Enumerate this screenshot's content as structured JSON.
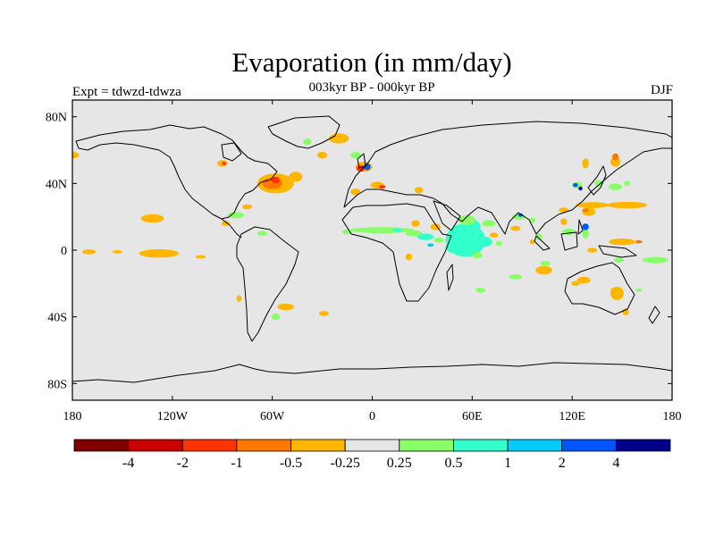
{
  "title": "Evaporation (in mm/day)",
  "subtitle": "003kyr BP - 000kyr BP",
  "expt_label": "Expt = tdwzd-tdwza",
  "season": "DJF",
  "map": {
    "projection": "cylindrical-equidistant",
    "lon_range": [
      -180,
      180
    ],
    "lat_range": [
      -90,
      90
    ],
    "background_color": "#e6e6e6",
    "coastline_color": "#000000",
    "lat_ticks": [
      {
        "lat": 80,
        "label": "80N"
      },
      {
        "lat": 40,
        "label": "40N"
      },
      {
        "lat": 0,
        "label": "0"
      },
      {
        "lat": -40,
        "label": "40S"
      },
      {
        "lat": -80,
        "label": "80S"
      }
    ],
    "lon_ticks": [
      {
        "lon": -180,
        "label": "180"
      },
      {
        "lon": -120,
        "label": "120W"
      },
      {
        "lon": -60,
        "label": "60W"
      },
      {
        "lon": 0,
        "label": "0"
      },
      {
        "lon": 60,
        "label": "60E"
      },
      {
        "lon": 120,
        "label": "120E"
      },
      {
        "lon": 180,
        "label": "180"
      }
    ]
  },
  "colorbar": {
    "colors": [
      "#800000",
      "#cc0000",
      "#ff3300",
      "#ff7700",
      "#ffb600",
      "#e6e6e6",
      "#88ff66",
      "#33ffcc",
      "#00ccff",
      "#0055ff",
      "#000088"
    ],
    "labels": [
      "-4",
      "-2",
      "-1",
      "-0.5",
      "-0.25",
      "0.25",
      "0.5",
      "1",
      "2",
      "4"
    ]
  },
  "anomalies": [
    {
      "lon": -58,
      "lat": 40,
      "rx": 11,
      "ry": 6,
      "color": "#ffb600"
    },
    {
      "lon": -60,
      "lat": 40,
      "rx": 6,
      "ry": 3.5,
      "color": "#ff7700"
    },
    {
      "lon": -58,
      "lat": 42,
      "rx": 2.5,
      "ry": 2,
      "color": "#ff3300"
    },
    {
      "lon": -46,
      "lat": 44,
      "rx": 4,
      "ry": 3,
      "color": "#ffb600"
    },
    {
      "lon": -90,
      "lat": 52,
      "rx": 3,
      "ry": 2,
      "color": "#ffb600"
    },
    {
      "lon": -89,
      "lat": 52,
      "rx": 1.3,
      "ry": 1,
      "color": "#ff3300"
    },
    {
      "lon": -180,
      "lat": 57,
      "rx": 4,
      "ry": 2,
      "color": "#ffb600"
    },
    {
      "lon": -39,
      "lat": 65,
      "rx": 2.5,
      "ry": 2,
      "color": "#88ff66"
    },
    {
      "lon": -20,
      "lat": 67,
      "rx": 6,
      "ry": 3,
      "color": "#ffb600"
    },
    {
      "lon": -30,
      "lat": 57,
      "rx": 3,
      "ry": 2,
      "color": "#ffb600"
    },
    {
      "lon": -10,
      "lat": 57,
      "rx": 3,
      "ry": 2,
      "color": "#88ff66"
    },
    {
      "lon": -5,
      "lat": 50,
      "rx": 5,
      "ry": 3,
      "color": "#ffb600"
    },
    {
      "lon": -7,
      "lat": 49,
      "rx": 2.5,
      "ry": 2,
      "color": "#ff3300"
    },
    {
      "lon": -3,
      "lat": 50,
      "rx": 2,
      "ry": 2,
      "color": "#0055ff"
    },
    {
      "lon": 3,
      "lat": 39,
      "rx": 4,
      "ry": 2,
      "color": "#ffb600"
    },
    {
      "lon": 6,
      "lat": 38,
      "rx": 2,
      "ry": 1,
      "color": "#ff3300"
    },
    {
      "lon": -10,
      "lat": 35,
      "rx": 3,
      "ry": 2,
      "color": "#ffb600"
    },
    {
      "lon": 28,
      "lat": 36,
      "rx": 2.5,
      "ry": 2,
      "color": "#ffb600"
    },
    {
      "lon": -132,
      "lat": 19,
      "rx": 7,
      "ry": 2.5,
      "color": "#ffb600"
    },
    {
      "lon": -82,
      "lat": 21,
      "rx": 5,
      "ry": 2,
      "color": "#88ff66"
    },
    {
      "lon": -75,
      "lat": 26,
      "rx": 3,
      "ry": 1.5,
      "color": "#ffb600"
    },
    {
      "lon": -88,
      "lat": 16,
      "rx": 2.5,
      "ry": 1.5,
      "color": "#ffb600"
    },
    {
      "lon": -66,
      "lat": 10,
      "rx": 3,
      "ry": 1.5,
      "color": "#88ff66"
    },
    {
      "lon": -170,
      "lat": -1,
      "rx": 4,
      "ry": 1.5,
      "color": "#ffb600"
    },
    {
      "lon": -153,
      "lat": -1,
      "rx": 3,
      "ry": 1,
      "color": "#ffb600"
    },
    {
      "lon": -128,
      "lat": -2,
      "rx": 12,
      "ry": 2.5,
      "color": "#ffb600"
    },
    {
      "lon": -103,
      "lat": -4,
      "rx": 3,
      "ry": 1,
      "color": "#ffb600"
    },
    {
      "lon": -15,
      "lat": 11,
      "rx": 3,
      "ry": 1.5,
      "color": "#88ff66"
    },
    {
      "lon": 6,
      "lat": 12,
      "rx": 19,
      "ry": 1.8,
      "color": "#88ff66"
    },
    {
      "lon": 15,
      "lat": 12,
      "rx": 3,
      "ry": 1,
      "color": "#33ffcc"
    },
    {
      "lon": 25,
      "lat": 10,
      "rx": 5,
      "ry": 1.8,
      "color": "#88ff66"
    },
    {
      "lon": 32,
      "lat": 8,
      "rx": 5,
      "ry": 2,
      "color": "#33ffcc"
    },
    {
      "lon": 40,
      "lat": 6,
      "rx": 3,
      "ry": 1.5,
      "color": "#88ff66"
    },
    {
      "lon": 35,
      "lat": 3,
      "rx": 2,
      "ry": 1,
      "color": "#00ccff"
    },
    {
      "lon": 38,
      "lat": 14,
      "rx": 3,
      "ry": 2,
      "color": "#ffb600"
    },
    {
      "lon": 26,
      "lat": 16,
      "rx": 2.5,
      "ry": 2,
      "color": "#ffb600"
    },
    {
      "lon": 22,
      "lat": -4,
      "rx": 2,
      "ry": 2,
      "color": "#ffb600"
    },
    {
      "lon": -52,
      "lat": -34,
      "rx": 5,
      "ry": 2,
      "color": "#ffb600"
    },
    {
      "lon": -58,
      "lat": -40,
      "rx": 2.5,
      "ry": 2,
      "color": "#88ff66"
    },
    {
      "lon": -80,
      "lat": -29,
      "rx": 1.5,
      "ry": 2,
      "color": "#ffb600"
    },
    {
      "lon": -29,
      "lat": -38,
      "rx": 3,
      "ry": 1.5,
      "color": "#ffb600"
    },
    {
      "lon": 56,
      "lat": 6,
      "rx": 12,
      "ry": 10,
      "color": "#33ffcc"
    },
    {
      "lon": 50,
      "lat": 2,
      "rx": 6,
      "ry": 4,
      "color": "#33ffcc"
    },
    {
      "lon": 61,
      "lat": 14,
      "rx": 4,
      "ry": 4,
      "color": "#33ffcc"
    },
    {
      "lon": 57,
      "lat": 18,
      "rx": 5,
      "ry": 3,
      "color": "#88ff66"
    },
    {
      "lon": 70,
      "lat": 16,
      "rx": 4,
      "ry": 2,
      "color": "#88ff66"
    },
    {
      "lon": 68,
      "lat": 5,
      "rx": 4,
      "ry": 3,
      "color": "#33ffcc"
    },
    {
      "lon": 63,
      "lat": -3,
      "rx": 3,
      "ry": 2,
      "color": "#88ff66"
    },
    {
      "lon": 73,
      "lat": 9,
      "rx": 2.5,
      "ry": 1.5,
      "color": "#ffb600"
    },
    {
      "lon": 76,
      "lat": 4,
      "rx": 2,
      "ry": 1.5,
      "color": "#88ff66"
    },
    {
      "lon": 88,
      "lat": 20,
      "rx": 4,
      "ry": 1.8,
      "color": "#88ff66"
    },
    {
      "lon": 89,
      "lat": 21,
      "rx": 1.5,
      "ry": 1,
      "color": "#0055ff"
    },
    {
      "lon": 86,
      "lat": 13,
      "rx": 3,
      "ry": 1.5,
      "color": "#ffb600"
    },
    {
      "lon": 96,
      "lat": 18,
      "rx": 2,
      "ry": 1.5,
      "color": "#88ff66"
    },
    {
      "lon": 100,
      "lat": 8,
      "rx": 2,
      "ry": 2,
      "color": "#88ff66"
    },
    {
      "lon": 96,
      "lat": 5,
      "rx": 1.5,
      "ry": 1.5,
      "color": "#ffb600"
    },
    {
      "lon": 65,
      "lat": -24,
      "rx": 3,
      "ry": 1.5,
      "color": "#88ff66"
    },
    {
      "lon": 86,
      "lat": -16,
      "rx": 4,
      "ry": 1.5,
      "color": "#88ff66"
    },
    {
      "lon": 104,
      "lat": -8,
      "rx": 3,
      "ry": 1.5,
      "color": "#88ff66"
    },
    {
      "lon": 128,
      "lat": 52,
      "rx": 2,
      "ry": 3,
      "color": "#ffb600"
    },
    {
      "lon": 123,
      "lat": 39,
      "rx": 3,
      "ry": 2,
      "color": "#88ff66"
    },
    {
      "lon": 122,
      "lat": 39,
      "rx": 1.5,
      "ry": 1.2,
      "color": "#0055ff"
    },
    {
      "lon": 125,
      "lat": 37,
      "rx": 1.2,
      "ry": 1.2,
      "color": "#000088"
    },
    {
      "lon": 136,
      "lat": 40,
      "rx": 2.5,
      "ry": 2,
      "color": "#88ff66"
    },
    {
      "lon": 146,
      "lat": 53,
      "rx": 3,
      "ry": 3,
      "color": "#ffb600"
    },
    {
      "lon": 146,
      "lat": 56,
      "rx": 2,
      "ry": 2,
      "color": "#ff7700"
    },
    {
      "lon": 146,
      "lat": 38,
      "rx": 4,
      "ry": 2,
      "color": "#88ff66"
    },
    {
      "lon": 153,
      "lat": 40,
      "rx": 2,
      "ry": 1.5,
      "color": "#88ff66"
    },
    {
      "lon": 132,
      "lat": 27,
      "rx": 10,
      "ry": 1.8,
      "color": "#ffb600"
    },
    {
      "lon": 153,
      "lat": 27,
      "rx": 12,
      "ry": 2,
      "color": "#ffb600"
    },
    {
      "lon": 130,
      "lat": 23,
      "rx": 4,
      "ry": 2.5,
      "color": "#ffb600"
    },
    {
      "lon": 128,
      "lat": 24,
      "rx": 2,
      "ry": 1,
      "color": "#ff7700"
    },
    {
      "lon": 115,
      "lat": 24,
      "rx": 3,
      "ry": 1.5,
      "color": "#ffb600"
    },
    {
      "lon": 118,
      "lat": 11,
      "rx": 4,
      "ry": 2,
      "color": "#88ff66"
    },
    {
      "lon": 128,
      "lat": 10,
      "rx": 2,
      "ry": 3,
      "color": "#88ff66"
    },
    {
      "lon": 128,
      "lat": 14,
      "rx": 2,
      "ry": 2,
      "color": "#0055ff"
    },
    {
      "lon": 115,
      "lat": 17,
      "rx": 2,
      "ry": 2,
      "color": "#ffb600"
    },
    {
      "lon": 150,
      "lat": 5,
      "rx": 8,
      "ry": 2,
      "color": "#ffb600"
    },
    {
      "lon": 160,
      "lat": 5,
      "rx": 2,
      "ry": 1,
      "color": "#ff7700"
    },
    {
      "lon": 132,
      "lat": 0,
      "rx": 3,
      "ry": 1.5,
      "color": "#ffb600"
    },
    {
      "lon": 148,
      "lat": -6,
      "rx": 3,
      "ry": 1.5,
      "color": "#88ff66"
    },
    {
      "lon": 170,
      "lat": -6,
      "rx": 8,
      "ry": 1.8,
      "color": "#88ff66"
    },
    {
      "lon": 103,
      "lat": -12,
      "rx": 5,
      "ry": 2.5,
      "color": "#ffb600"
    },
    {
      "lon": 127,
      "lat": -18,
      "rx": 4,
      "ry": 2,
      "color": "#ffb600"
    },
    {
      "lon": 122,
      "lat": -20,
      "rx": 2.5,
      "ry": 1.5,
      "color": "#ffb600"
    },
    {
      "lon": 147,
      "lat": -26,
      "rx": 4,
      "ry": 4,
      "color": "#ffb600"
    },
    {
      "lon": 145,
      "lat": -24,
      "rx": 2,
      "ry": 1.5,
      "color": "#ffb600"
    },
    {
      "lon": 152,
      "lat": -37,
      "rx": 2,
      "ry": 2,
      "color": "#ffb600"
    },
    {
      "lon": 160,
      "lat": -24,
      "rx": 2,
      "ry": 1,
      "color": "#88ff66"
    }
  ]
}
